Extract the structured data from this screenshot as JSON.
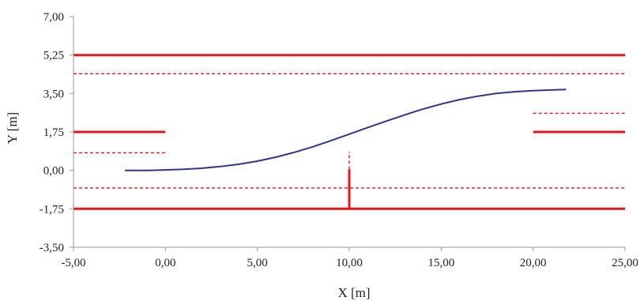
{
  "chart_data": {
    "type": "line",
    "title": "",
    "xlabel": "X [m]",
    "ylabel": "Y [m]",
    "xlim": [
      -5,
      25
    ],
    "ylim": [
      -3.5,
      7
    ],
    "grid": false,
    "legend": "none",
    "x_ticks": [
      -5,
      0,
      5,
      10,
      15,
      20,
      25
    ],
    "y_ticks": [
      -3.5,
      -1.75,
      0,
      1.75,
      3.5,
      5.25,
      7
    ],
    "x_tick_labels": [
      "-5,00",
      "0,00",
      "5,00",
      "10,00",
      "15,00",
      "20,00",
      "25,00"
    ],
    "y_tick_labels": [
      "-3,50",
      "-1,75",
      "0,00",
      "1,75",
      "3,50",
      "5,25",
      "7,00"
    ],
    "colors": {
      "trajectory": "#2e3592",
      "boundary": "#e8151c",
      "axis": "#9a9a9a"
    },
    "series": [
      {
        "style": "solid",
        "kind": "trajectory",
        "x": [
          -2.2,
          -1,
          0,
          1,
          2,
          3,
          4,
          5,
          6,
          7,
          8,
          9,
          10,
          11,
          12,
          13,
          14,
          15,
          16,
          17,
          18,
          19,
          20,
          21,
          21.8
        ],
        "y": [
          0.0,
          0.0,
          0.02,
          0.05,
          0.1,
          0.18,
          0.28,
          0.42,
          0.6,
          0.82,
          1.07,
          1.35,
          1.65,
          1.95,
          2.24,
          2.52,
          2.79,
          3.02,
          3.22,
          3.38,
          3.5,
          3.58,
          3.63,
          3.66,
          3.68
        ]
      },
      {
        "style": "solid",
        "kind": "boundary",
        "x": [
          -5,
          25
        ],
        "y": [
          5.25,
          5.25
        ]
      },
      {
        "style": "dashed",
        "kind": "boundary",
        "x": [
          -5,
          25
        ],
        "y": [
          4.4,
          4.4
        ]
      },
      {
        "style": "solid",
        "kind": "boundary",
        "x": [
          -5,
          25
        ],
        "y": [
          -1.75,
          -1.75
        ]
      },
      {
        "style": "dashed",
        "kind": "boundary",
        "x": [
          -5,
          25
        ],
        "y": [
          -0.8,
          -0.8
        ]
      },
      {
        "style": "solid",
        "kind": "boundary",
        "x": [
          -5,
          0
        ],
        "y": [
          1.75,
          1.75
        ]
      },
      {
        "style": "dashed",
        "kind": "boundary",
        "x": [
          -5,
          0
        ],
        "y": [
          0.8,
          0.8
        ]
      },
      {
        "style": "solid",
        "kind": "boundary",
        "x": [
          20,
          25
        ],
        "y": [
          1.75,
          1.75
        ]
      },
      {
        "style": "dashed",
        "kind": "boundary",
        "x": [
          20,
          25
        ],
        "y": [
          2.6,
          2.6
        ]
      },
      {
        "style": "solid",
        "kind": "boundary",
        "x": [
          10,
          10
        ],
        "y": [
          -1.75,
          0.05
        ]
      },
      {
        "style": "dashed",
        "kind": "boundary",
        "x": [
          10,
          10
        ],
        "y": [
          0.05,
          0.85
        ]
      }
    ]
  }
}
